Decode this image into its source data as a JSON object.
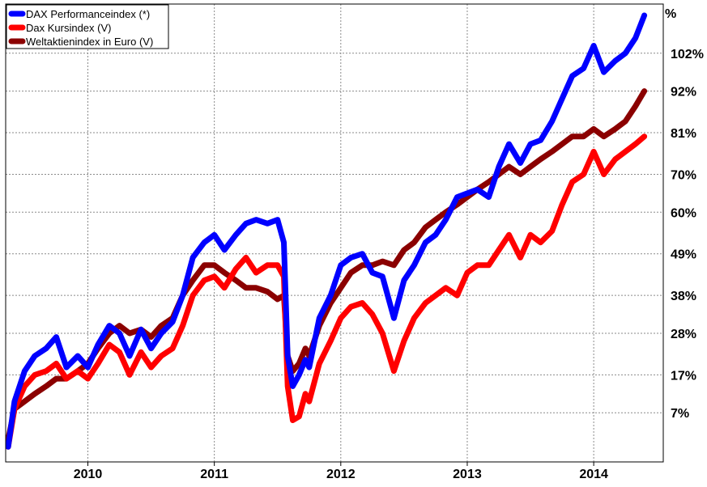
{
  "chart_data": {
    "type": "line",
    "title": "",
    "xlabel": "",
    "ylabel": "",
    "y_unit_label": "%",
    "x_range": [
      2009.35,
      2014.55
    ],
    "ylim": [
      -6,
      115
    ],
    "x_tick_labels": [
      "2010",
      "2011",
      "2012",
      "2013",
      "2014"
    ],
    "x_tick_values": [
      2010,
      2011,
      2012,
      2013,
      2014
    ],
    "y_tick_labels": [
      "7%",
      "17%",
      "28%",
      "38%",
      "49%",
      "60%",
      "70%",
      "81%",
      "92%",
      "102%"
    ],
    "y_tick_values": [
      7,
      17,
      28,
      38,
      49,
      60,
      70,
      81,
      92,
      102
    ],
    "grid": true,
    "legend_position": "top-left",
    "series": [
      {
        "name": "DAX Performanceindex (*)",
        "color": "#0000ff",
        "x": [
          2009.37,
          2009.42,
          2009.5,
          2009.58,
          2009.67,
          2009.75,
          2009.83,
          2009.92,
          2010.0,
          2010.08,
          2010.17,
          2010.25,
          2010.33,
          2010.42,
          2010.5,
          2010.58,
          2010.67,
          2010.75,
          2010.83,
          2010.92,
          2011.0,
          2011.08,
          2011.17,
          2011.25,
          2011.33,
          2011.42,
          2011.5,
          2011.55,
          2011.58,
          2011.62,
          2011.67,
          2011.72,
          2011.75,
          2011.83,
          2011.92,
          2012.0,
          2012.08,
          2012.17,
          2012.25,
          2012.33,
          2012.42,
          2012.5,
          2012.58,
          2012.67,
          2012.75,
          2012.83,
          2012.92,
          2013.0,
          2013.08,
          2013.17,
          2013.25,
          2013.33,
          2013.42,
          2013.5,
          2013.58,
          2013.67,
          2013.75,
          2013.83,
          2013.92,
          2014.0,
          2014.08,
          2014.17,
          2014.25,
          2014.33,
          2014.4
        ],
        "values": [
          -2,
          10,
          18,
          22,
          24,
          27,
          19,
          22,
          19,
          25,
          30,
          28,
          22,
          29,
          24,
          28,
          31,
          38,
          48,
          52,
          54,
          50,
          54,
          57,
          58,
          57,
          58,
          52,
          22,
          14,
          17,
          21,
          19,
          32,
          38,
          46,
          48,
          49,
          44,
          43,
          32,
          42,
          46,
          52,
          54,
          58,
          64,
          65,
          66,
          64,
          72,
          78,
          73,
          78,
          79,
          84,
          90,
          96,
          98,
          104,
          97,
          100,
          102,
          106,
          112
        ]
      },
      {
        "name": "Dax Kursindex (V)",
        "color": "#ff0000",
        "x": [
          2009.37,
          2009.42,
          2009.5,
          2009.58,
          2009.67,
          2009.75,
          2009.83,
          2009.92,
          2010.0,
          2010.08,
          2010.17,
          2010.25,
          2010.33,
          2010.42,
          2010.5,
          2010.58,
          2010.67,
          2010.75,
          2010.83,
          2010.92,
          2011.0,
          2011.08,
          2011.17,
          2011.25,
          2011.33,
          2011.42,
          2011.5,
          2011.55,
          2011.58,
          2011.62,
          2011.67,
          2011.72,
          2011.75,
          2011.83,
          2011.92,
          2012.0,
          2012.08,
          2012.17,
          2012.25,
          2012.33,
          2012.42,
          2012.5,
          2012.58,
          2012.67,
          2012.75,
          2012.83,
          2012.92,
          2013.0,
          2013.08,
          2013.17,
          2013.25,
          2013.33,
          2013.42,
          2013.5,
          2013.58,
          2013.67,
          2013.75,
          2013.83,
          2013.92,
          2014.0,
          2014.08,
          2014.17,
          2014.25,
          2014.33,
          2014.4
        ],
        "values": [
          -2,
          8,
          14,
          17,
          18,
          20,
          16,
          18,
          16,
          20,
          25,
          23,
          17,
          23,
          19,
          22,
          24,
          30,
          38,
          42,
          43,
          40,
          45,
          48,
          44,
          46,
          46,
          43,
          14,
          5,
          6,
          12,
          10,
          20,
          26,
          32,
          35,
          36,
          33,
          28,
          18,
          26,
          32,
          36,
          38,
          40,
          38,
          44,
          46,
          46,
          50,
          54,
          48,
          54,
          52,
          55,
          62,
          68,
          70,
          76,
          70,
          74,
          76,
          78,
          80
        ]
      },
      {
        "name": "Weltaktienindex in Euro (V)",
        "color": "#8b0000",
        "x": [
          2009.37,
          2009.42,
          2009.5,
          2009.58,
          2009.67,
          2009.75,
          2009.83,
          2009.92,
          2010.0,
          2010.08,
          2010.17,
          2010.25,
          2010.33,
          2010.42,
          2010.5,
          2010.58,
          2010.67,
          2010.75,
          2010.83,
          2010.92,
          2011.0,
          2011.08,
          2011.17,
          2011.25,
          2011.33,
          2011.42,
          2011.5,
          2011.55,
          2011.58,
          2011.62,
          2011.67,
          2011.72,
          2011.75,
          2011.83,
          2011.92,
          2012.0,
          2012.08,
          2012.17,
          2012.25,
          2012.33,
          2012.42,
          2012.5,
          2012.58,
          2012.67,
          2012.75,
          2012.83,
          2012.92,
          2013.0,
          2013.08,
          2013.17,
          2013.25,
          2013.33,
          2013.42,
          2013.5,
          2013.58,
          2013.67,
          2013.75,
          2013.83,
          2013.92,
          2014.0,
          2014.08,
          2014.17,
          2014.25,
          2014.33,
          2014.4
        ],
        "values": [
          0,
          8,
          10,
          12,
          14,
          16,
          16,
          18,
          20,
          24,
          28,
          30,
          28,
          29,
          27,
          30,
          32,
          38,
          42,
          46,
          46,
          44,
          42,
          40,
          40,
          39,
          37,
          38,
          22,
          18,
          20,
          24,
          22,
          30,
          36,
          40,
          44,
          46,
          46,
          47,
          46,
          50,
          52,
          56,
          58,
          60,
          62,
          64,
          66,
          68,
          70,
          72,
          70,
          72,
          74,
          76,
          78,
          80,
          80,
          82,
          80,
          82,
          84,
          88,
          92
        ]
      }
    ]
  }
}
